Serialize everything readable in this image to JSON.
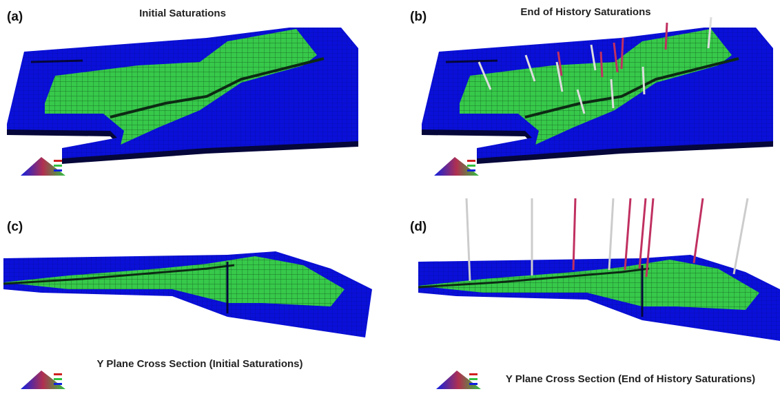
{
  "panels": [
    {
      "label": "(a)",
      "title": "Initial Saturations"
    },
    {
      "label": "(b)",
      "title": "End of History Saturations"
    },
    {
      "label": "(c)",
      "title": "Y Plane Cross Section (Initial Saturations)"
    },
    {
      "label": "(d)",
      "title": "Y Plane Cross Section (End of History Saturations)"
    }
  ]
}
